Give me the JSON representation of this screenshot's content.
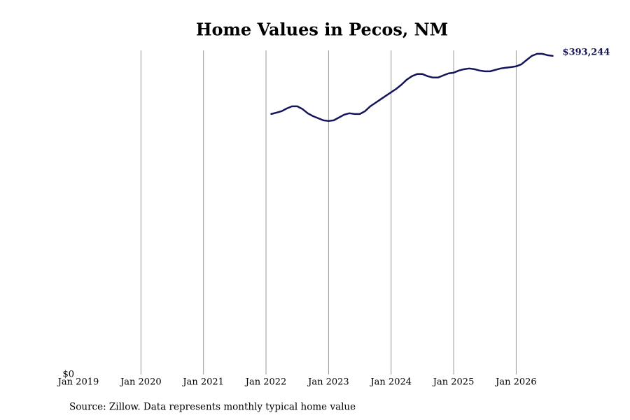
{
  "chart_data": {
    "type": "line",
    "title": "Home Values in Pecos, NM",
    "source": "Source: Zillow. Data represents monthly typical home value",
    "x": [
      "Feb 2022",
      "Mar 2022",
      "Apr 2022",
      "May 2022",
      "Jun 2022",
      "Jul 2022",
      "Aug 2022",
      "Sep 2022",
      "Oct 2022",
      "Nov 2022",
      "Dec 2022",
      "Jan 2023",
      "Feb 2023",
      "Mar 2023",
      "Apr 2023",
      "May 2023",
      "Jun 2023",
      "Jul 2023",
      "Aug 2023",
      "Sep 2023",
      "Oct 2023",
      "Nov 2023",
      "Dec 2023",
      "Jan 2024",
      "Feb 2024",
      "Mar 2024",
      "Apr 2024",
      "May 2024",
      "Jun 2024",
      "Jul 2024",
      "Aug 2024",
      "Sep 2024",
      "Oct 2024",
      "Nov 2024",
      "Dec 2024",
      "Jan 2025",
      "Feb 2025",
      "Mar 2025",
      "Apr 2025",
      "May 2025",
      "Jun 2025",
      "Jul 2025",
      "Aug 2025",
      "Sep 2025",
      "Oct 2025",
      "Nov 2025",
      "Dec 2025",
      "Jan 2026",
      "Feb 2026",
      "Mar 2026",
      "Apr 2026",
      "May 2026",
      "Jun 2026",
      "Jul 2026",
      "Aug 2026"
    ],
    "series": [
      {
        "name": "Pecos, NM",
        "color": "#14145a",
        "values": [
          321500,
          323200,
          325000,
          328400,
          331000,
          331000,
          327600,
          322400,
          318900,
          316300,
          313700,
          312900,
          313700,
          317200,
          320700,
          322400,
          321500,
          321500,
          325000,
          331000,
          335300,
          339700,
          344000,
          348300,
          352600,
          357800,
          363900,
          368200,
          370800,
          370800,
          368200,
          366500,
          366500,
          369100,
          371600,
          372500,
          375100,
          376800,
          377700,
          376800,
          375100,
          374200,
          374200,
          376000,
          377700,
          378600,
          379400,
          380300,
          382900,
          388100,
          393244,
          395800,
          395800,
          394100,
          393244
        ],
        "end_label": "$393,244"
      }
    ],
    "xlim": [
      "Jan 2019",
      "Sep 2026"
    ],
    "xticks": [
      "Jan 2019",
      "Jan 2020",
      "Jan 2021",
      "Jan 2022",
      "Jan 2023",
      "Jan 2024",
      "Jan 2025",
      "Jan 2026"
    ],
    "ylim": [
      0,
      400000
    ],
    "yticks": [
      {
        "value": 0,
        "label": "$0"
      }
    ],
    "xgrid": true
  }
}
